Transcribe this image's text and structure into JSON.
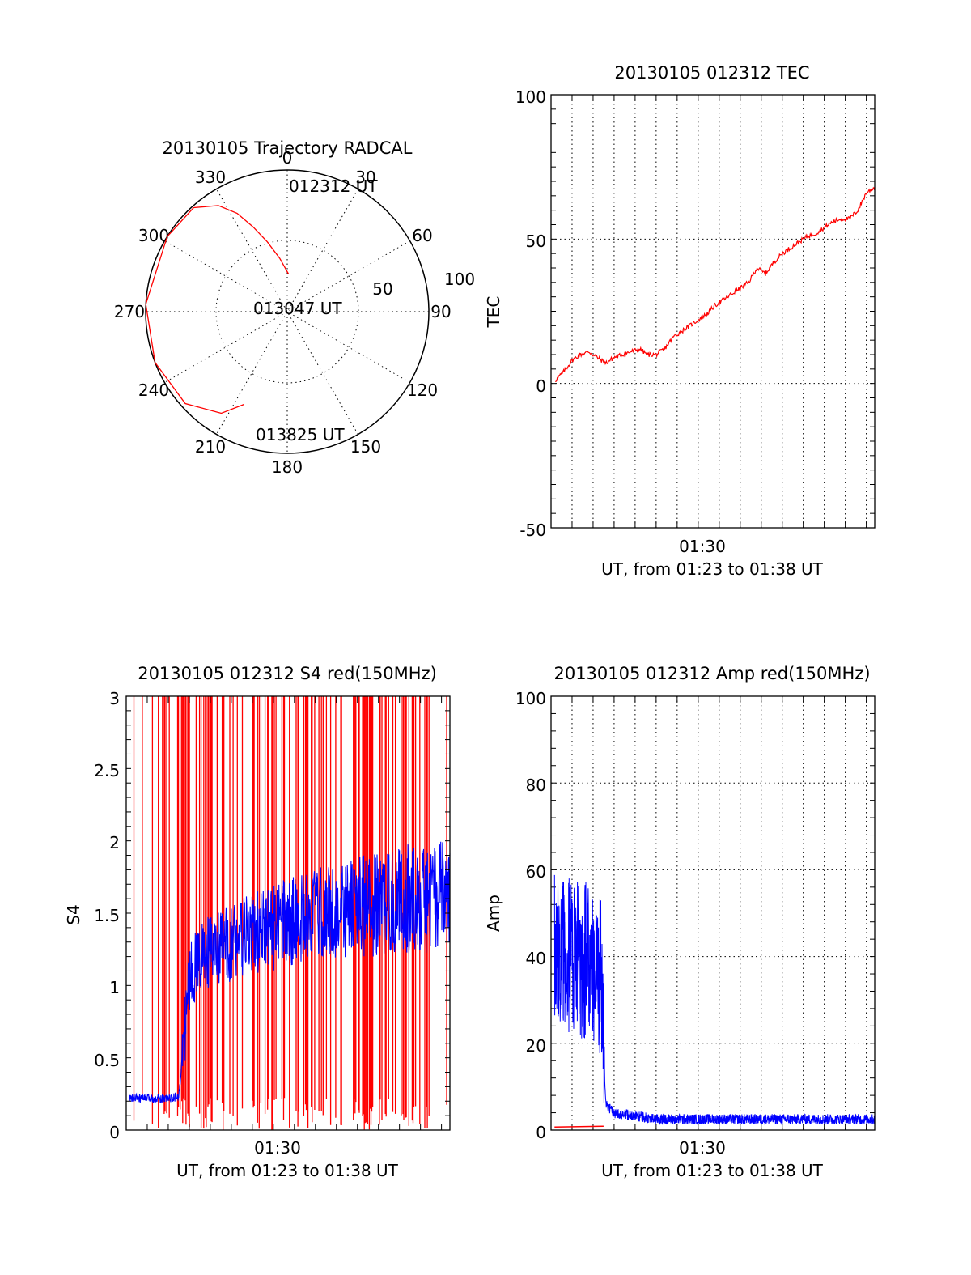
{
  "chart_data": [
    {
      "type": "scatter",
      "panel": "polar",
      "title": "20130105 Trajectory RADCAL",
      "azimuth_labels": [
        "0",
        "30",
        "60",
        "90",
        "120",
        "150",
        "180",
        "210",
        "240",
        "270",
        "300",
        "330"
      ],
      "radial_labels": [
        "50",
        "100"
      ],
      "elevation_range": [
        0,
        100
      ],
      "annotations": [
        "012312 UT",
        "013047 UT",
        "013825 UT"
      ],
      "series": [
        {
          "color": "#ff0000",
          "azimuth_deg": [
            2,
            352,
            344,
            338,
            333,
            327,
            318,
            302,
            273,
            249,
            228,
            213,
            205
          ],
          "elevation": [
            86,
            80,
            73,
            66,
            59,
            53,
            48,
            45,
            44,
            45,
            49,
            55,
            62
          ]
        }
      ]
    },
    {
      "type": "line",
      "panel": "tec",
      "title": "20130105 012312 TEC",
      "ylabel": "TEC",
      "xlabel": "UT, from 01:23 to 01:38 UT",
      "xtick_labels": [
        "01:30"
      ],
      "ytick_labels": [
        "-50",
        "0",
        "50",
        "100"
      ],
      "ylim": [
        -50,
        100
      ],
      "xlim": [
        "01:23",
        "01:38"
      ],
      "grid": true,
      "series": [
        {
          "color": "#ff0000",
          "x": [
            "01:23:12",
            "01:23:36",
            "01:24:00",
            "01:24:24",
            "01:24:48",
            "01:25:12",
            "01:25:36",
            "01:26:00",
            "01:26:24",
            "01:26:48",
            "01:27:12",
            "01:27:36",
            "01:28:00",
            "01:28:24",
            "01:28:48",
            "01:29:12",
            "01:29:36",
            "01:30:00",
            "01:30:24",
            "01:30:48",
            "01:31:12",
            "01:31:36",
            "01:32:00",
            "01:32:24",
            "01:32:48",
            "01:33:12",
            "01:33:36",
            "01:34:00",
            "01:34:24",
            "01:34:48",
            "01:35:12",
            "01:35:36",
            "01:36:00",
            "01:36:24",
            "01:36:48",
            "01:37:12",
            "01:37:36",
            "01:38:00",
            "01:38:24"
          ],
          "values": [
            1,
            4,
            8,
            10,
            11,
            9,
            7,
            9,
            10,
            11,
            12,
            10,
            10,
            12,
            16,
            18,
            20,
            22,
            24,
            27,
            29,
            31,
            33,
            35,
            40,
            38,
            42,
            45,
            47,
            49,
            51,
            52,
            54,
            56,
            57,
            57,
            60,
            66,
            68
          ]
        }
      ]
    },
    {
      "type": "line",
      "panel": "s4",
      "title": "20130105 012312 S4 red(150MHz)",
      "ylabel": "S4",
      "xlabel": "UT, from 01:23 to 01:38 UT",
      "xtick_labels": [
        "01:30"
      ],
      "ytick_labels": [
        "0",
        "0.5",
        "1",
        "1.5",
        "2",
        "2.5",
        "3"
      ],
      "ylim": [
        0,
        3
      ],
      "xlim": [
        "01:23",
        "01:38"
      ],
      "series": [
        {
          "color": "#0000ff",
          "x": [
            "01:23:10",
            "01:24:00",
            "01:25:00",
            "01:25:30",
            "01:26:00",
            "01:26:30",
            "01:27:00",
            "01:28:00",
            "01:29:00",
            "01:30:00",
            "01:31:00",
            "01:32:00",
            "01:33:00",
            "01:34:00",
            "01:35:00",
            "01:36:00",
            "01:37:00",
            "01:38:00",
            "01:38:24"
          ],
          "values": [
            0.22,
            0.22,
            0.22,
            0.23,
            1.05,
            1.2,
            1.22,
            1.3,
            1.35,
            1.4,
            1.45,
            1.5,
            1.5,
            1.55,
            1.55,
            1.6,
            1.6,
            1.6,
            1.6
          ]
        },
        {
          "color": "#ff0000",
          "x": [],
          "values": []
        }
      ]
    },
    {
      "type": "line",
      "panel": "amp",
      "title": "20130105 012312 Amp red(150MHz)",
      "ylabel": "Amp",
      "xlabel": "UT, from 01:23 to 01:38 UT",
      "xtick_labels": [
        "01:30"
      ],
      "ytick_labels": [
        "0",
        "20",
        "40",
        "60",
        "80",
        "100"
      ],
      "ylim": [
        0,
        100
      ],
      "xlim": [
        "01:23",
        "01:38"
      ],
      "grid": true,
      "series": [
        {
          "color": "#0000ff",
          "x": [
            "01:23:10",
            "01:24:00",
            "01:25:00",
            "01:25:24",
            "01:25:36",
            "01:26:00",
            "01:28:00",
            "01:30:00",
            "01:32:00",
            "01:34:00",
            "01:36:00",
            "01:38:24"
          ],
          "values": [
            42,
            40,
            38,
            35,
            6,
            4,
            2.5,
            2.5,
            2.5,
            2.5,
            2.5,
            2.5
          ]
        },
        {
          "color": "#ff0000",
          "x": [
            "01:23:10",
            "01:25:30"
          ],
          "values": [
            0.7,
            0.9
          ]
        }
      ]
    }
  ]
}
